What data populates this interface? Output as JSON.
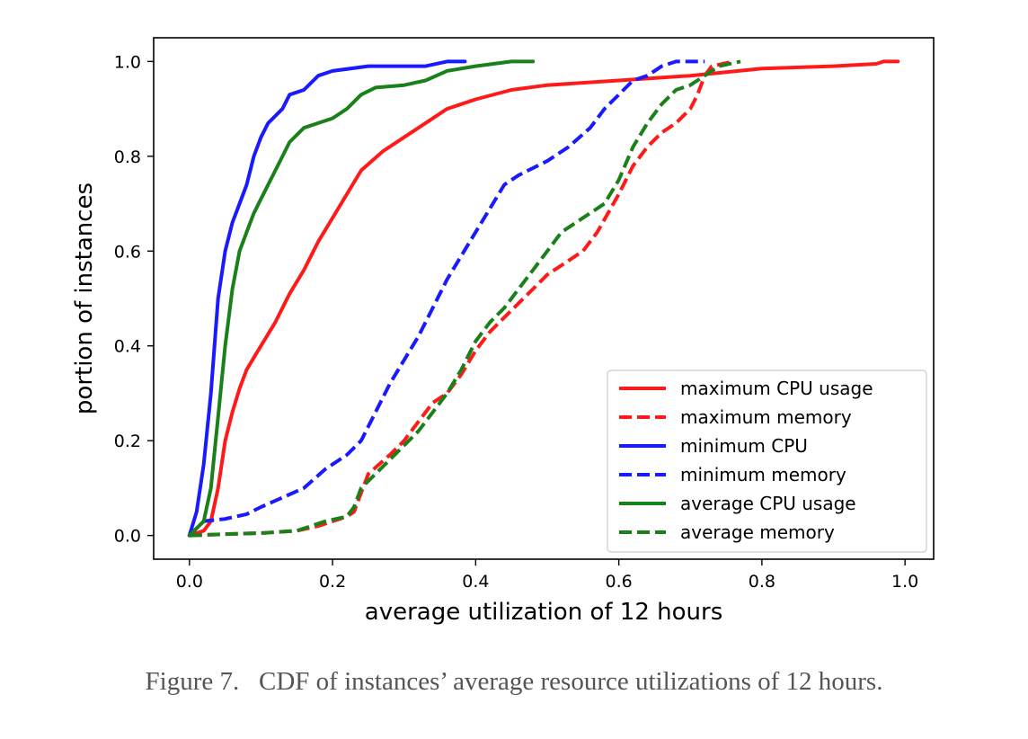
{
  "figure": {
    "caption": "Figure 7.   CDF of instances’ average resource utilizations of 12 hours."
  },
  "chart_data": {
    "type": "line",
    "title": "",
    "xlabel": "average utilization of 12 hours",
    "ylabel": "portion of instances",
    "xlim": [
      -0.05,
      1.04
    ],
    "ylim": [
      -0.05,
      1.05
    ],
    "xticks": [
      0.0,
      0.2,
      0.4,
      0.6,
      0.8,
      1.0
    ],
    "xtick_labels": [
      "0.0",
      "0.2",
      "0.4",
      "0.6",
      "0.8",
      "1.0"
    ],
    "yticks": [
      0.0,
      0.2,
      0.4,
      0.6,
      0.8,
      1.0
    ],
    "ytick_labels": [
      "0.0",
      "0.2",
      "0.4",
      "0.6",
      "0.8",
      "1.0"
    ],
    "grid": false,
    "legend_position": "lower-right",
    "series": [
      {
        "name": "maximum CPU usage",
        "color": "#ff1a1a",
        "style": "solid",
        "points": [
          [
            0.0,
            0.0
          ],
          [
            0.02,
            0.01
          ],
          [
            0.03,
            0.03
          ],
          [
            0.04,
            0.1
          ],
          [
            0.05,
            0.2
          ],
          [
            0.06,
            0.26
          ],
          [
            0.07,
            0.31
          ],
          [
            0.08,
            0.35
          ],
          [
            0.1,
            0.4
          ],
          [
            0.12,
            0.45
          ],
          [
            0.14,
            0.51
          ],
          [
            0.16,
            0.56
          ],
          [
            0.18,
            0.62
          ],
          [
            0.2,
            0.67
          ],
          [
            0.22,
            0.72
          ],
          [
            0.24,
            0.77
          ],
          [
            0.27,
            0.81
          ],
          [
            0.3,
            0.84
          ],
          [
            0.33,
            0.87
          ],
          [
            0.36,
            0.9
          ],
          [
            0.4,
            0.92
          ],
          [
            0.45,
            0.94
          ],
          [
            0.5,
            0.95
          ],
          [
            0.6,
            0.96
          ],
          [
            0.7,
            0.97
          ],
          [
            0.8,
            0.985
          ],
          [
            0.9,
            0.99
          ],
          [
            0.96,
            0.995
          ],
          [
            0.97,
            1.0
          ],
          [
            0.99,
            1.0
          ]
        ]
      },
      {
        "name": "maximum memory",
        "color": "#ff1a1a",
        "style": "dashed",
        "points": [
          [
            0.0,
            0.0
          ],
          [
            0.05,
            0.003
          ],
          [
            0.1,
            0.005
          ],
          [
            0.15,
            0.01
          ],
          [
            0.18,
            0.02
          ],
          [
            0.2,
            0.03
          ],
          [
            0.22,
            0.04
          ],
          [
            0.23,
            0.05
          ],
          [
            0.24,
            0.09
          ],
          [
            0.25,
            0.13
          ],
          [
            0.28,
            0.17
          ],
          [
            0.3,
            0.2
          ],
          [
            0.32,
            0.24
          ],
          [
            0.34,
            0.28
          ],
          [
            0.36,
            0.3
          ],
          [
            0.38,
            0.34
          ],
          [
            0.4,
            0.39
          ],
          [
            0.42,
            0.43
          ],
          [
            0.44,
            0.46
          ],
          [
            0.46,
            0.49
          ],
          [
            0.48,
            0.52
          ],
          [
            0.5,
            0.55
          ],
          [
            0.53,
            0.58
          ],
          [
            0.55,
            0.6
          ],
          [
            0.57,
            0.64
          ],
          [
            0.6,
            0.72
          ],
          [
            0.62,
            0.78
          ],
          [
            0.64,
            0.82
          ],
          [
            0.66,
            0.85
          ],
          [
            0.68,
            0.87
          ],
          [
            0.7,
            0.9
          ],
          [
            0.71,
            0.93
          ],
          [
            0.72,
            0.97
          ],
          [
            0.73,
            0.99
          ],
          [
            0.76,
            1.0
          ]
        ]
      },
      {
        "name": "minimum CPU",
        "color": "#1a1aff",
        "style": "solid",
        "points": [
          [
            0.0,
            0.0
          ],
          [
            0.01,
            0.05
          ],
          [
            0.02,
            0.15
          ],
          [
            0.03,
            0.3
          ],
          [
            0.035,
            0.4
          ],
          [
            0.04,
            0.5
          ],
          [
            0.05,
            0.6
          ],
          [
            0.06,
            0.66
          ],
          [
            0.07,
            0.7
          ],
          [
            0.08,
            0.74
          ],
          [
            0.09,
            0.8
          ],
          [
            0.1,
            0.84
          ],
          [
            0.11,
            0.87
          ],
          [
            0.13,
            0.9
          ],
          [
            0.14,
            0.93
          ],
          [
            0.16,
            0.94
          ],
          [
            0.18,
            0.97
          ],
          [
            0.2,
            0.98
          ],
          [
            0.25,
            0.99
          ],
          [
            0.33,
            0.99
          ],
          [
            0.36,
            1.0
          ],
          [
            0.385,
            1.0
          ]
        ]
      },
      {
        "name": "minimum memory",
        "color": "#1a1aff",
        "style": "dashed",
        "points": [
          [
            0.0,
            0.0
          ],
          [
            0.02,
            0.03
          ],
          [
            0.05,
            0.035
          ],
          [
            0.08,
            0.045
          ],
          [
            0.1,
            0.06
          ],
          [
            0.13,
            0.08
          ],
          [
            0.16,
            0.1
          ],
          [
            0.19,
            0.14
          ],
          [
            0.22,
            0.17
          ],
          [
            0.24,
            0.2
          ],
          [
            0.26,
            0.26
          ],
          [
            0.28,
            0.32
          ],
          [
            0.3,
            0.37
          ],
          [
            0.32,
            0.42
          ],
          [
            0.34,
            0.48
          ],
          [
            0.36,
            0.54
          ],
          [
            0.38,
            0.59
          ],
          [
            0.4,
            0.64
          ],
          [
            0.42,
            0.69
          ],
          [
            0.44,
            0.74
          ],
          [
            0.46,
            0.76
          ],
          [
            0.5,
            0.79
          ],
          [
            0.53,
            0.82
          ],
          [
            0.56,
            0.86
          ],
          [
            0.58,
            0.9
          ],
          [
            0.6,
            0.93
          ],
          [
            0.62,
            0.96
          ],
          [
            0.64,
            0.97
          ],
          [
            0.66,
            0.99
          ],
          [
            0.68,
            1.0
          ],
          [
            0.72,
            1.0
          ]
        ]
      },
      {
        "name": "average CPU usage",
        "color": "#1a801a",
        "style": "solid",
        "points": [
          [
            0.0,
            0.0
          ],
          [
            0.02,
            0.03
          ],
          [
            0.03,
            0.1
          ],
          [
            0.04,
            0.25
          ],
          [
            0.05,
            0.4
          ],
          [
            0.06,
            0.52
          ],
          [
            0.07,
            0.6
          ],
          [
            0.08,
            0.64
          ],
          [
            0.09,
            0.68
          ],
          [
            0.1,
            0.71
          ],
          [
            0.12,
            0.77
          ],
          [
            0.14,
            0.83
          ],
          [
            0.16,
            0.86
          ],
          [
            0.18,
            0.87
          ],
          [
            0.2,
            0.88
          ],
          [
            0.22,
            0.9
          ],
          [
            0.24,
            0.93
          ],
          [
            0.26,
            0.945
          ],
          [
            0.3,
            0.95
          ],
          [
            0.33,
            0.96
          ],
          [
            0.36,
            0.98
          ],
          [
            0.4,
            0.99
          ],
          [
            0.45,
            1.0
          ],
          [
            0.48,
            1.0
          ]
        ]
      },
      {
        "name": "average memory",
        "color": "#1a801a",
        "style": "dashed",
        "points": [
          [
            0.0,
            0.0
          ],
          [
            0.05,
            0.003
          ],
          [
            0.1,
            0.005
          ],
          [
            0.15,
            0.01
          ],
          [
            0.17,
            0.02
          ],
          [
            0.19,
            0.03
          ],
          [
            0.22,
            0.04
          ],
          [
            0.23,
            0.06
          ],
          [
            0.24,
            0.1
          ],
          [
            0.26,
            0.13
          ],
          [
            0.28,
            0.16
          ],
          [
            0.3,
            0.19
          ],
          [
            0.32,
            0.22
          ],
          [
            0.34,
            0.26
          ],
          [
            0.36,
            0.3
          ],
          [
            0.38,
            0.35
          ],
          [
            0.4,
            0.41
          ],
          [
            0.42,
            0.45
          ],
          [
            0.44,
            0.48
          ],
          [
            0.46,
            0.52
          ],
          [
            0.48,
            0.56
          ],
          [
            0.5,
            0.6
          ],
          [
            0.52,
            0.64
          ],
          [
            0.54,
            0.66
          ],
          [
            0.56,
            0.68
          ],
          [
            0.58,
            0.7
          ],
          [
            0.6,
            0.75
          ],
          [
            0.62,
            0.82
          ],
          [
            0.64,
            0.87
          ],
          [
            0.66,
            0.91
          ],
          [
            0.68,
            0.94
          ],
          [
            0.7,
            0.95
          ],
          [
            0.72,
            0.97
          ],
          [
            0.74,
            0.99
          ],
          [
            0.77,
            1.0
          ]
        ]
      }
    ]
  }
}
